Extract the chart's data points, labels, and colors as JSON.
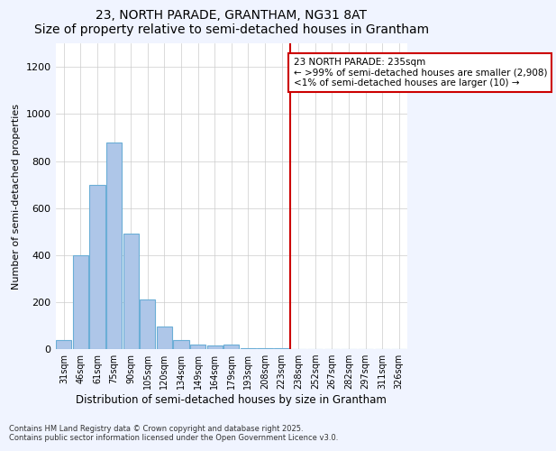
{
  "title": "23, NORTH PARADE, GRANTHAM, NG31 8AT",
  "subtitle": "Size of property relative to semi-detached houses in Grantham",
  "xlabel": "Distribution of semi-detached houses by size in Grantham",
  "ylabel": "Number of semi-detached properties",
  "categories": [
    "31sqm",
    "46sqm",
    "61sqm",
    "75sqm",
    "90sqm",
    "105sqm",
    "120sqm",
    "134sqm",
    "149sqm",
    "164sqm",
    "179sqm",
    "193sqm",
    "208sqm",
    "223sqm",
    "238sqm",
    "252sqm",
    "267sqm",
    "282sqm",
    "297sqm",
    "311sqm",
    "326sqm"
  ],
  "bar_heights": [
    40,
    400,
    700,
    880,
    490,
    210,
    95,
    40,
    20,
    15,
    20,
    5,
    5,
    5,
    0,
    0,
    0,
    0,
    0,
    0,
    0
  ],
  "highlight_index": 14,
  "bar_color": "#aec6e8",
  "bar_edge_color": "#6baed6",
  "vline_color": "#cc0000",
  "annotation_text": "23 NORTH PARADE: 235sqm\n← >99% of semi-detached houses are smaller (2,908)\n<1% of semi-detached houses are larger (10) →",
  "annotation_box_color": "#cc0000",
  "annotation_box_fill": "white",
  "ylim": [
    0,
    1300
  ],
  "yticks": [
    0,
    200,
    400,
    600,
    800,
    1000,
    1200
  ],
  "footnote": "Contains HM Land Registry data © Crown copyright and database right 2025.\nContains public sector information licensed under the Open Government Licence v3.0.",
  "bg_color": "#f0f4ff",
  "plot_bg_color": "white",
  "grid_color": "#cccccc"
}
